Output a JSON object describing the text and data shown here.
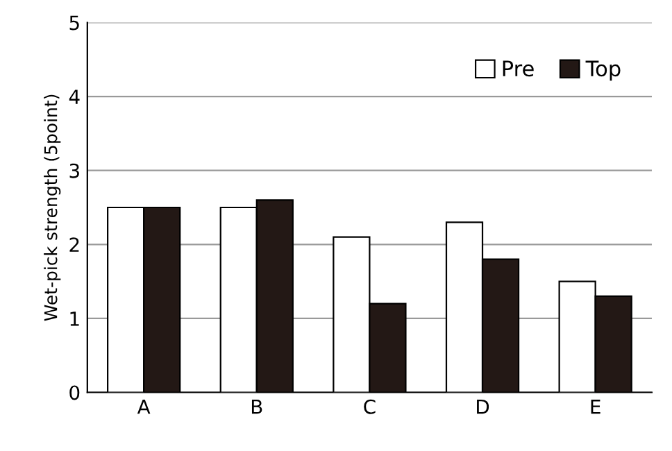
{
  "chart_data": {
    "type": "bar",
    "ylabel": "Wet-pick strength (5point)",
    "categories": [
      "A",
      "B",
      "C",
      "D",
      "E"
    ],
    "series": [
      {
        "name": "Pre",
        "color": "#ffffff",
        "values": [
          2.5,
          2.5,
          2.1,
          2.3,
          1.5
        ]
      },
      {
        "name": "Top",
        "color": "#231815",
        "values": [
          2.5,
          2.6,
          1.2,
          1.8,
          1.3
        ]
      }
    ],
    "ylim": [
      0,
      5
    ],
    "yticks": [
      0,
      1,
      2,
      3,
      4,
      5
    ],
    "grid": "y",
    "legend": "top right"
  }
}
